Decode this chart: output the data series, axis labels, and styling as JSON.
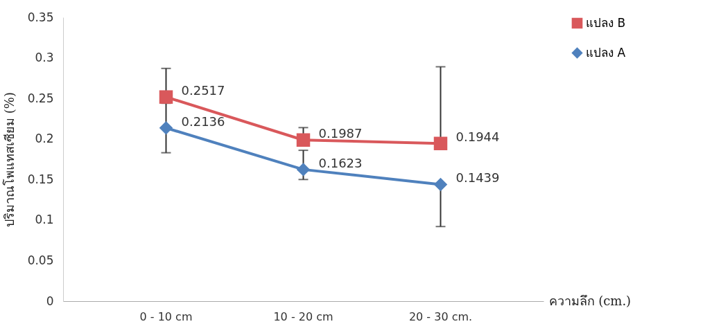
{
  "chart_data": {
    "type": "line",
    "xlabel": "ความลึก (cm.)",
    "ylabel": "ปริมาณโพแทสเซียม (%)",
    "categories": [
      "0 - 10 cm",
      "10 - 20 cm",
      "20 - 30 cm."
    ],
    "series": [
      {
        "name": "แปลง B",
        "color": "#d9585b",
        "marker": "square",
        "values": [
          0.2517,
          0.1987,
          0.1944
        ],
        "errors": [
          [
            0.2517,
            0.287
          ],
          [
            0.1987,
            0.214
          ],
          [
            0.1944,
            0.289
          ]
        ]
      },
      {
        "name": "แปลง A",
        "color": "#4f81bd",
        "marker": "diamond",
        "values": [
          0.2136,
          0.1623,
          0.1439
        ],
        "errors": [
          [
            0.183,
            0.244
          ],
          [
            0.15,
            0.186
          ],
          [
            0.092,
            0.1439
          ]
        ]
      }
    ],
    "ylim": [
      0,
      0.35
    ],
    "yticks": [
      0,
      0.05,
      0.1,
      0.15,
      0.2,
      0.25,
      0.3,
      0.35
    ],
    "grid": false,
    "legend": "right",
    "data_labels": true
  }
}
